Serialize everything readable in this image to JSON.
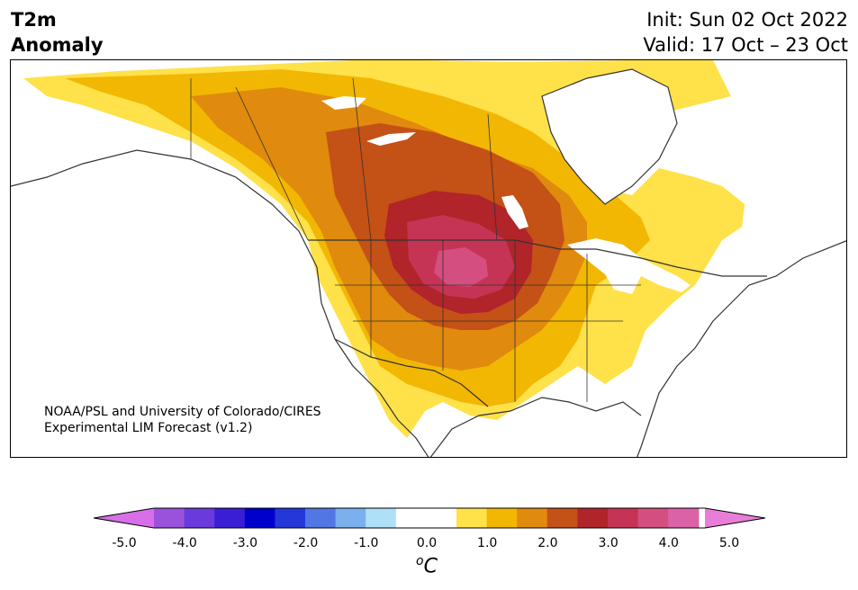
{
  "title": {
    "line1": "T2m",
    "line2": "Anomaly"
  },
  "dates": {
    "init": "Init: Sun 02 Oct 2022",
    "valid": "Valid: 17 Oct – 23 Oct"
  },
  "credit": {
    "line1": "NOAA/PSL and University of Colorado/CIRES",
    "line2": "Experimental LIM Forecast (v1.2)"
  },
  "colorbar": {
    "ticks": [
      "-5.0",
      "-4.0",
      "-3.0",
      "-2.0",
      "-1.0",
      "0.0",
      "1.0",
      "2.0",
      "3.0",
      "4.0",
      "5.0"
    ],
    "unit_prefix": "o",
    "unit_suffix": "C",
    "colors": [
      "#d86ee8",
      "#9a52dc",
      "#6a3adc",
      "#3a1ed6",
      "#0000cc",
      "#2438da",
      "#5277e4",
      "#7ab0ee",
      "#aee0f8",
      "#ffffff",
      "#ffffff",
      "#ffe14a",
      "#f2b703",
      "#e08a0e",
      "#c45116",
      "#b0242a",
      "#c53455",
      "#d44e7f",
      "#dc62a8",
      "#e87ed8"
    ]
  },
  "map": {
    "land_outline_color": "#333333",
    "anomaly_levels": [
      "0.5",
      "1.0",
      "1.5",
      "2.0",
      "2.5",
      "3.0",
      "3.5",
      "4.0"
    ]
  }
}
